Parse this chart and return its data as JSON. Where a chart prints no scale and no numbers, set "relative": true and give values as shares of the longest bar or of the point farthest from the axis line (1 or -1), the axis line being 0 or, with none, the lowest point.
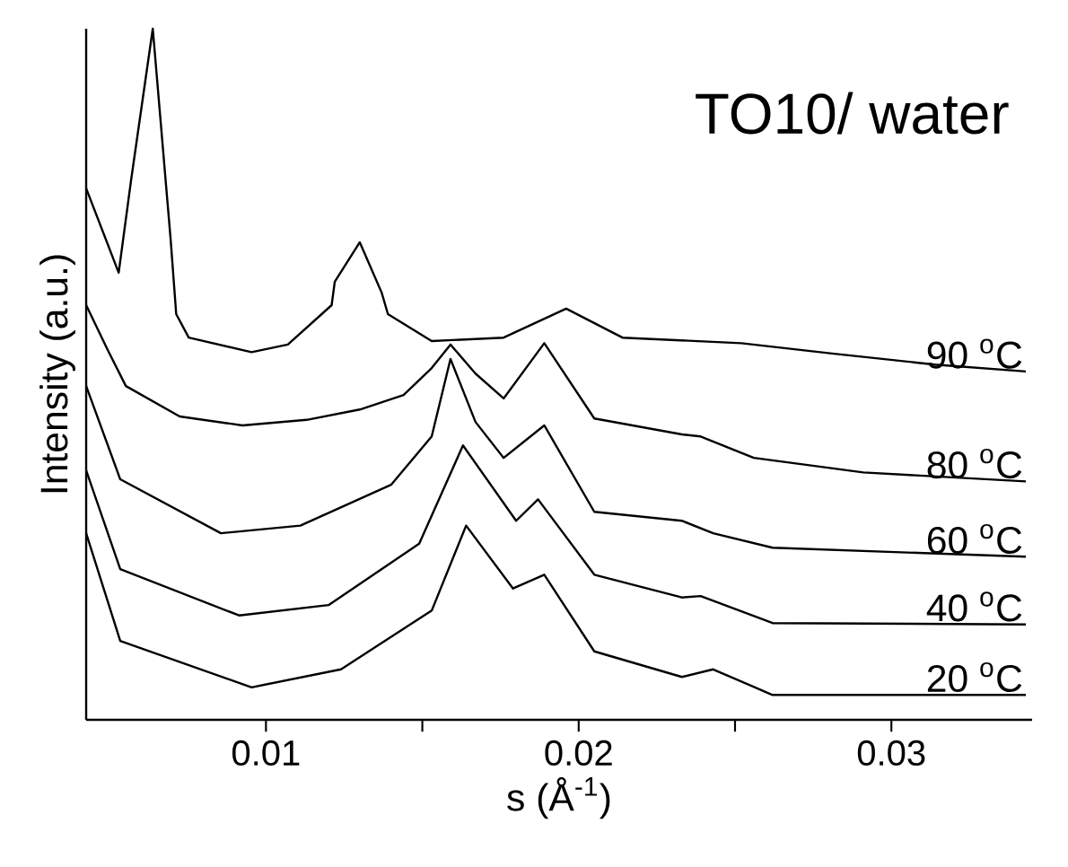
{
  "chart_data": {
    "type": "line",
    "title": "TO10/ water",
    "xlabel": "s (Å$^{-1}$)",
    "ylabel": "Intensity (a.u.)",
    "relative": true,
    "xlim": [
      0.00425,
      0.0345
    ],
    "xticks": [
      0.01,
      0.02,
      0.03
    ],
    "series": [
      {
        "name": "90 $^{o}$C",
        "color": "#000000",
        "x": [
          0.00425,
          0.00529,
          0.00569,
          0.00638,
          0.00695,
          0.00713,
          0.00753,
          0.00954,
          0.0107,
          0.0121,
          0.0122,
          0.013,
          0.0137,
          0.0139,
          0.0153,
          0.0176,
          0.0196,
          0.0214,
          0.0252,
          0.0281,
          0.0314,
          0.0343
        ],
        "values": [
          0.769,
          0.647,
          0.782,
          1,
          0.696,
          0.587,
          0.553,
          0.532,
          0.543,
          0.6,
          0.634,
          0.691,
          0.618,
          0.587,
          0.548,
          0.553,
          0.595,
          0.553,
          0.545,
          0.53,
          0.514,
          0.504
        ]
      },
      {
        "name": "80 $^{o}$C",
        "color": "#000000",
        "x": [
          0.00425,
          0.00494,
          0.00552,
          0.00724,
          0.00925,
          0.0113,
          0.013,
          0.0144,
          0.0153,
          0.0159,
          0.0167,
          0.0176,
          0.0189,
          0.0205,
          0.0233,
          0.0239,
          0.0256,
          0.0291,
          0.0343
        ],
        "values": [
          0.6,
          0.535,
          0.483,
          0.439,
          0.426,
          0.434,
          0.449,
          0.47,
          0.509,
          0.543,
          0.501,
          0.465,
          0.545,
          0.436,
          0.413,
          0.41,
          0.379,
          0.358,
          0.345
        ]
      },
      {
        "name": "60 $^{o}$C",
        "color": "#000000",
        "x": [
          0.00425,
          0.00534,
          0.00856,
          0.0111,
          0.014,
          0.0153,
          0.0159,
          0.0167,
          0.0176,
          0.0189,
          0.0205,
          0.0233,
          0.0243,
          0.0262,
          0.0343
        ],
        "values": [
          0.483,
          0.348,
          0.27,
          0.281,
          0.34,
          0.41,
          0.522,
          0.431,
          0.379,
          0.426,
          0.301,
          0.288,
          0.27,
          0.249,
          0.236
        ]
      },
      {
        "name": "40 $^{o}$C",
        "color": "#000000",
        "x": [
          0.00425,
          0.00534,
          0.00914,
          0.012,
          0.0149,
          0.0163,
          0.018,
          0.0187,
          0.0205,
          0.0233,
          0.0239,
          0.0262,
          0.0343
        ],
        "values": [
          0.361,
          0.218,
          0.151,
          0.166,
          0.255,
          0.397,
          0.288,
          0.319,
          0.21,
          0.177,
          0.179,
          0.14,
          0.138
        ]
      },
      {
        "name": "20 $^{o}$C",
        "color": "#000000",
        "x": [
          0.00425,
          0.00534,
          0.00954,
          0.0124,
          0.0153,
          0.0164,
          0.0179,
          0.0189,
          0.0205,
          0.0233,
          0.0243,
          0.0262,
          0.0343
        ],
        "values": [
          0.27,
          0.114,
          0.047,
          0.073,
          0.158,
          0.281,
          0.19,
          0.21,
          0.099,
          0.062,
          0.073,
          0.036,
          0.036
        ]
      }
    ]
  }
}
